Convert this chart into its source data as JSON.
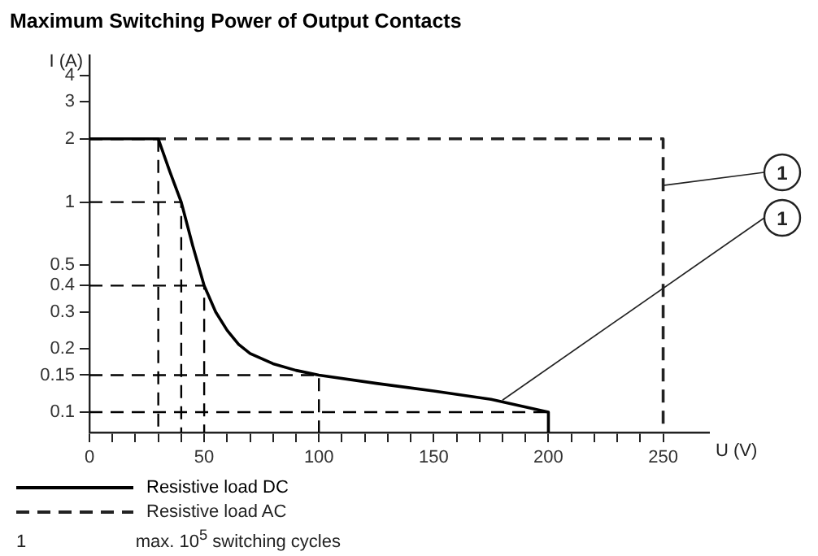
{
  "chart_data": {
    "type": "line",
    "title": "Maximum Switching Power of Output Contacts",
    "xlabel": "U (V)",
    "ylabel": "I (A)",
    "log": "y",
    "xlim": [
      0,
      270
    ],
    "ylim": [
      0.08,
      5
    ],
    "xticks": [
      0,
      {
        "value": 10,
        "label": null
      },
      {
        "value": 20,
        "label": null
      },
      {
        "value": 30,
        "label": null
      },
      {
        "value": 40,
        "label": null
      },
      50,
      {
        "value": 60,
        "label": null
      },
      {
        "value": 70,
        "label": null
      },
      {
        "value": 80,
        "label": null
      },
      {
        "value": 90,
        "label": null
      },
      100,
      {
        "value": 110,
        "label": null
      },
      {
        "value": 120,
        "label": null
      },
      {
        "value": 130,
        "label": null
      },
      {
        "value": 140,
        "label": null
      },
      150,
      {
        "value": 160,
        "label": null
      },
      {
        "value": 170,
        "label": null
      },
      {
        "value": 180,
        "label": null
      },
      {
        "value": 190,
        "label": null
      },
      200,
      {
        "value": 210,
        "label": null
      },
      {
        "value": 220,
        "label": null
      },
      {
        "value": 230,
        "label": null
      },
      {
        "value": 240,
        "label": null
      },
      250
    ],
    "yticks": [
      0.1,
      0.15,
      0.2,
      0.3,
      0.4,
      0.5,
      1,
      2,
      3,
      4
    ],
    "legend": "bottom",
    "series": [
      {
        "name": "Resistive load DC",
        "color": "#000000",
        "line_style": "solid",
        "x": [
          0,
          30,
          35,
          40,
          45,
          50,
          55,
          60,
          65,
          70,
          80,
          90,
          100,
          125,
          150,
          175,
          200,
          200
        ],
        "values": [
          2,
          2,
          1.4,
          1,
          0.62,
          0.4,
          0.3,
          0.245,
          0.21,
          0.19,
          0.17,
          0.158,
          0.15,
          0.137,
          0.126,
          0.115,
          0.1,
          0.08
        ]
      },
      {
        "name": "Resistive load AC",
        "color": "#222222",
        "line_style": "dashed",
        "x": [
          0,
          250,
          250
        ],
        "values": [
          2,
          2,
          0.08
        ]
      },
      {
        "color": "#000000",
        "line_style": "dashed",
        "x": [
          30,
          30
        ],
        "values": [
          2,
          0.08
        ]
      },
      {
        "color": "#000000",
        "line_style": "dashed",
        "x": [
          0,
          40,
          40
        ],
        "values": [
          1,
          1,
          0.08
        ]
      },
      {
        "color": "#000000",
        "line_style": "dashed",
        "x": [
          0,
          50,
          50
        ],
        "values": [
          0.4,
          0.4,
          0.08
        ]
      },
      {
        "color": "#000000",
        "line_style": "dashed",
        "x": [
          0,
          100,
          100
        ],
        "values": [
          0.15,
          0.15,
          0.08
        ]
      },
      {
        "color": "#000000",
        "line_style": "dashed",
        "x": [
          0,
          200
        ],
        "values": [
          0.1,
          0.1
        ]
      }
    ],
    "annotations": [
      {
        "text": "1",
        "x": 250,
        "y": 1.2
      },
      {
        "text": "1",
        "x": 180,
        "y": 0.114
      },
      "1 max. 10$^{5}$ switching cycles"
    ]
  }
}
